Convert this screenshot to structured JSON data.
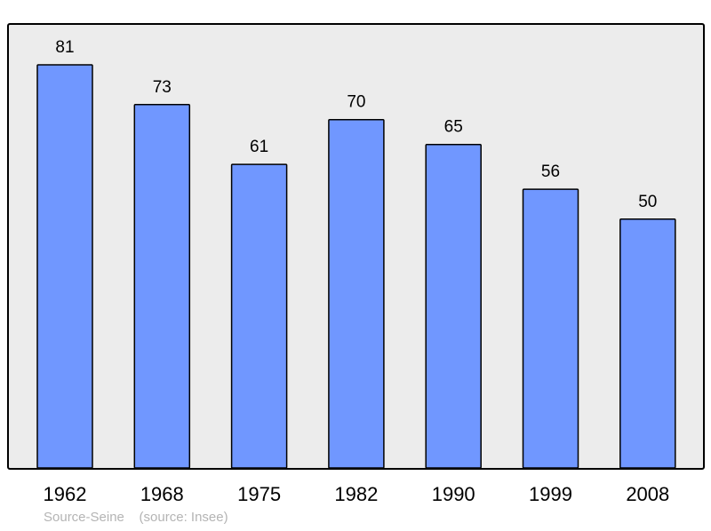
{
  "chart_data": {
    "type": "bar",
    "categories": [
      "1962",
      "1968",
      "1975",
      "1982",
      "1990",
      "1999",
      "2008"
    ],
    "values": [
      81,
      73,
      61,
      70,
      65,
      56,
      50
    ],
    "title": "",
    "xlabel": "",
    "ylabel": "",
    "ylim": [
      0,
      89
    ],
    "grid": false,
    "colors": {
      "bar": "#7097ff",
      "plot_background": "#ececec",
      "frame": "#000000"
    }
  },
  "footer": {
    "source_text": "Source-Seine    (source: Insee)"
  }
}
